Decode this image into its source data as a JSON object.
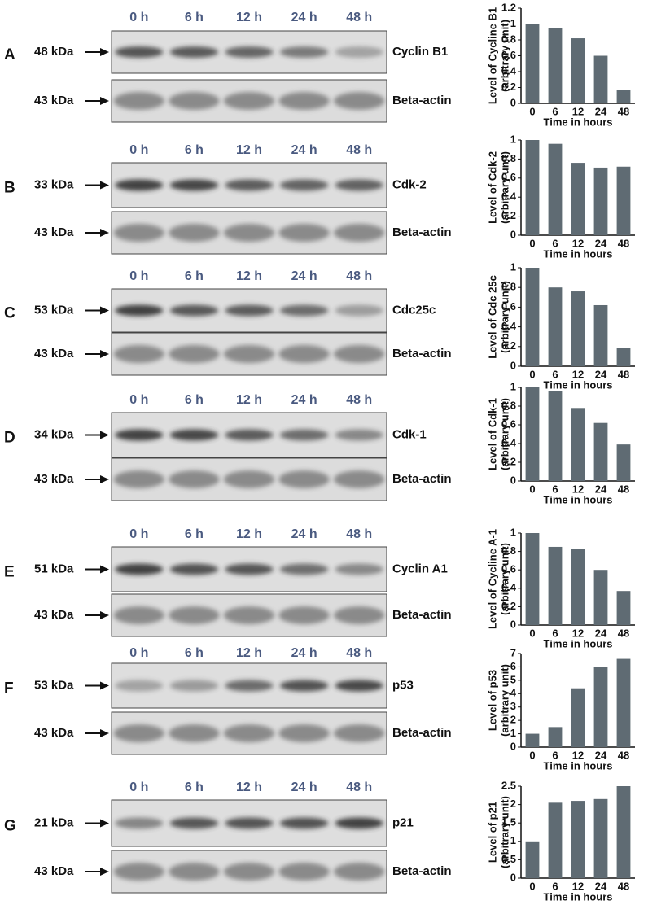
{
  "chart_data": [
    {
      "type": "bar",
      "ylabel": [
        "Level of Cycline B1",
        "(arbitrary unit)"
      ],
      "xlabel": "Time in hours",
      "categories": [
        "0",
        "6",
        "12",
        "24",
        "48"
      ],
      "values": [
        1,
        0.95,
        0.82,
        0.6,
        0.17
      ],
      "color": "#5f6b73",
      "ylim": [
        0,
        1.2
      ],
      "yticks": [
        0,
        0.2,
        0.4,
        0.6,
        0.8,
        1,
        1.2
      ]
    },
    {
      "type": "bar",
      "ylabel": [
        "Level of Cdk-2",
        "(arbitrary unit)"
      ],
      "xlabel": "Time in hours",
      "categories": [
        "0",
        "6",
        "12",
        "24",
        "48"
      ],
      "values": [
        1,
        0.96,
        0.76,
        0.71,
        0.72
      ],
      "color": "#5f6b73",
      "ylim": [
        0,
        1
      ],
      "yticks": [
        0,
        0.2,
        0.4,
        0.6,
        0.8,
        1
      ]
    },
    {
      "type": "bar",
      "ylabel": [
        "Level of Cdc 25c",
        "(arbitrary unit)"
      ],
      "xlabel": "Time in hours",
      "categories": [
        "0",
        "6",
        "12",
        "24",
        "48"
      ],
      "values": [
        1,
        0.8,
        0.76,
        0.62,
        0.19
      ],
      "color": "#5f6b73",
      "ylim": [
        0,
        1
      ],
      "yticks": [
        0,
        0.2,
        0.4,
        0.6,
        0.8,
        1
      ]
    },
    {
      "type": "bar",
      "ylabel": [
        "Level of Cdk-1",
        "(arbitrary unit)"
      ],
      "xlabel": "Time in hours",
      "categories": [
        "0",
        "6",
        "12",
        "24",
        "48"
      ],
      "values": [
        1,
        0.96,
        0.78,
        0.62,
        0.39
      ],
      "color": "#5f6b73",
      "ylim": [
        0,
        1
      ],
      "yticks": [
        0,
        0.2,
        0.4,
        0.6,
        0.8,
        1
      ]
    },
    {
      "type": "bar",
      "ylabel": [
        "Level of Cycline A-1",
        "(arbitrary unit)"
      ],
      "xlabel": "Time in hours",
      "categories": [
        "0",
        "6",
        "12",
        "24",
        "48"
      ],
      "values": [
        1,
        0.85,
        0.83,
        0.6,
        0.37
      ],
      "color": "#5f6b73",
      "ylim": [
        0,
        1
      ],
      "yticks": [
        0,
        0.2,
        0.4,
        0.6,
        0.8,
        1
      ]
    },
    {
      "type": "bar",
      "ylabel": [
        "Level of p53",
        "(arbitrary unit)"
      ],
      "xlabel": "Time in hours",
      "categories": [
        "0",
        "6",
        "12",
        "24",
        "48"
      ],
      "values": [
        1,
        1.5,
        4.4,
        6.0,
        6.6
      ],
      "color": "#5f6b73",
      "ylim": [
        0,
        7
      ],
      "yticks": [
        0,
        1,
        2,
        3,
        4,
        5,
        6,
        7
      ]
    },
    {
      "type": "bar",
      "ylabel": [
        "Level of p21",
        "(arbitrary unit)"
      ],
      "xlabel": "Time in hours",
      "categories": [
        "0",
        "6",
        "12",
        "24",
        "48"
      ],
      "values": [
        1,
        2.05,
        2.1,
        2.15,
        2.5
      ],
      "color": "#5f6b73",
      "ylim": [
        0,
        2.5
      ],
      "yticks": [
        0,
        0.5,
        1,
        1.5,
        2,
        2.5
      ]
    }
  ],
  "blots": [
    {
      "letter": "A",
      "kda": "48 kDa",
      "target": "Cyclin B1",
      "times": [
        "0 h",
        "6 h",
        "12 h",
        "24 h",
        "48 h"
      ],
      "control_kda": "43 kDa",
      "control": "Beta-actin"
    },
    {
      "letter": "B",
      "kda": "33 kDa",
      "target": "Cdk-2",
      "times": [
        "0 h",
        "6 h",
        "12 h",
        "24 h",
        "48 h"
      ],
      "control_kda": "43 kDa",
      "control": "Beta-actin"
    },
    {
      "letter": "C",
      "kda": "53 kDa",
      "target": "Cdc25c",
      "times": [
        "0 h",
        "6 h",
        "12 h",
        "24 h",
        "48 h"
      ],
      "control_kda": "43 kDa",
      "control": "Beta-actin"
    },
    {
      "letter": "D",
      "kda": "34 kDa",
      "target": "Cdk-1",
      "times": [
        "0 h",
        "6 h",
        "12 h",
        "24 h",
        "48 h"
      ],
      "control_kda": "43 kDa",
      "control": "Beta-actin"
    },
    {
      "letter": "E",
      "kda": "51 kDa",
      "target": "Cyclin A1",
      "times": [
        "0 h",
        "6 h",
        "12 h",
        "24 h",
        "48 h"
      ],
      "control_kda": "43 kDa",
      "control": "Beta-actin"
    },
    {
      "letter": "F",
      "kda": "53 kDa",
      "target": "p53",
      "times": [
        "0 h",
        "6 h",
        "12 h",
        "24 h",
        "48 h"
      ],
      "control_kda": "43 kDa",
      "control": "Beta-actin"
    },
    {
      "letter": "G",
      "kda": "21 kDa",
      "target": "p21",
      "times": [
        "0 h",
        "6 h",
        "12 h",
        "24 h",
        "48 h"
      ],
      "control_kda": "43 kDa",
      "control": "Beta-actin"
    }
  ]
}
